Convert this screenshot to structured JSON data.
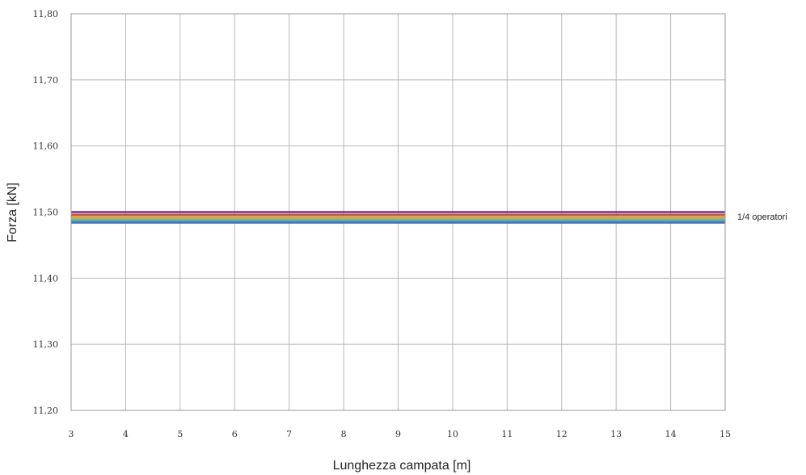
{
  "chart_data": {
    "type": "line",
    "title": "",
    "xlabel": "Lunghezza campata [m]",
    "ylabel": "Forza [kN]",
    "xlim": [
      3,
      15
    ],
    "ylim": [
      11.2,
      11.8
    ],
    "x_ticks": [
      3,
      4,
      5,
      6,
      7,
      8,
      9,
      10,
      11,
      12,
      13,
      14,
      15
    ],
    "x_tick_labels": [
      "3",
      "4",
      "5",
      "6",
      "7",
      "8",
      "9",
      "10",
      "11",
      "12",
      "13",
      "14",
      "15"
    ],
    "y_ticks": [
      11.2,
      11.3,
      11.4,
      11.5,
      11.6,
      11.7,
      11.8
    ],
    "y_tick_labels": [
      "11,20",
      "11,30",
      "11,40",
      "11,50",
      "11,60",
      "11,70",
      "11,80"
    ],
    "grid": true,
    "legend": "none",
    "annotation": "1/4 operatori",
    "series": [
      {
        "color": "#7030a0",
        "x": [
          3,
          15
        ],
        "y": [
          11.5,
          11.5
        ]
      },
      {
        "color": "#c0504d",
        "x": [
          3,
          15
        ],
        "y": [
          11.496,
          11.496
        ]
      },
      {
        "color": "#f79646",
        "x": [
          3,
          15
        ],
        "y": [
          11.493,
          11.493
        ]
      },
      {
        "color": "#9bbb59",
        "x": [
          3,
          15
        ],
        "y": [
          11.49,
          11.49
        ]
      },
      {
        "color": "#4bacc6",
        "x": [
          3,
          15
        ],
        "y": [
          11.487,
          11.487
        ]
      },
      {
        "color": "#4472c4",
        "x": [
          3,
          15
        ],
        "y": [
          11.484,
          11.484
        ]
      }
    ]
  }
}
